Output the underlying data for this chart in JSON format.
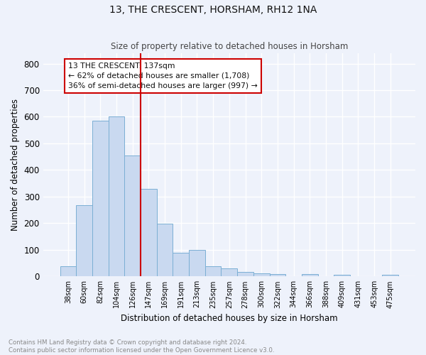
{
  "title1": "13, THE CRESCENT, HORSHAM, RH12 1NA",
  "title2": "Size of property relative to detached houses in Horsham",
  "xlabel": "Distribution of detached houses by size in Horsham",
  "ylabel": "Number of detached properties",
  "bar_labels": [
    "38sqm",
    "60sqm",
    "82sqm",
    "104sqm",
    "126sqm",
    "147sqm",
    "169sqm",
    "191sqm",
    "213sqm",
    "235sqm",
    "257sqm",
    "278sqm",
    "300sqm",
    "322sqm",
    "344sqm",
    "366sqm",
    "388sqm",
    "409sqm",
    "431sqm",
    "453sqm",
    "475sqm"
  ],
  "bar_values": [
    38,
    267,
    585,
    602,
    454,
    330,
    197,
    90,
    100,
    38,
    30,
    18,
    12,
    10,
    0,
    8,
    0,
    5,
    0,
    0,
    7
  ],
  "bar_color": "#c9d9f0",
  "bar_edge_color": "#7bafd4",
  "vline_x": 4.5,
  "vline_color": "#cc0000",
  "ylim": [
    0,
    840
  ],
  "yticks": [
    0,
    100,
    200,
    300,
    400,
    500,
    600,
    700,
    800
  ],
  "annotation_text": "13 THE CRESCENT: 137sqm\n← 62% of detached houses are smaller (1,708)\n36% of semi-detached houses are larger (997) →",
  "annotation_box_color": "#ffffff",
  "annotation_box_edge": "#cc0000",
  "footer_text": "Contains HM Land Registry data © Crown copyright and database right 2024.\nContains public sector information licensed under the Open Government Licence v3.0.",
  "background_color": "#eef2fb",
  "grid_color": "#ffffff"
}
